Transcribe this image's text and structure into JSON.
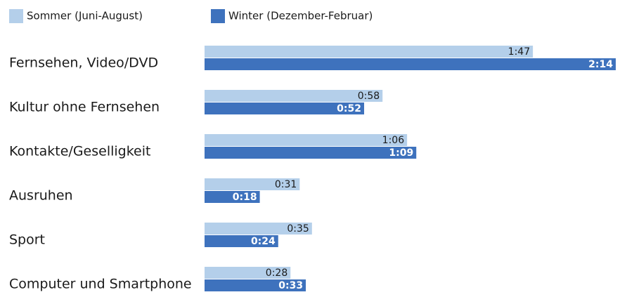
{
  "chart_data": {
    "type": "bar",
    "orientation": "horizontal",
    "categories": [
      "Fernsehen, Video/DVD",
      "Kultur ohne Fernsehen",
      "Kontakte/Geselligkeit",
      "Ausruhen",
      "Sport",
      "Computer und Smartphone"
    ],
    "series": [
      {
        "name": "Sommer (Juni-August)",
        "color": "#b4cfea",
        "values": [
          107,
          58,
          66,
          31,
          35,
          28
        ],
        "value_labels": [
          "1:47",
          "0:58",
          "1:06",
          "0:31",
          "0:35",
          "0:28"
        ]
      },
      {
        "name": "Winter (Dezember-Februar)",
        "color": "#3e72bd",
        "values": [
          134,
          52,
          69,
          18,
          24,
          33
        ],
        "value_labels": [
          "2:14",
          "0:52",
          "1:09",
          "0:18",
          "0:24",
          "0:33"
        ]
      }
    ]
  }
}
